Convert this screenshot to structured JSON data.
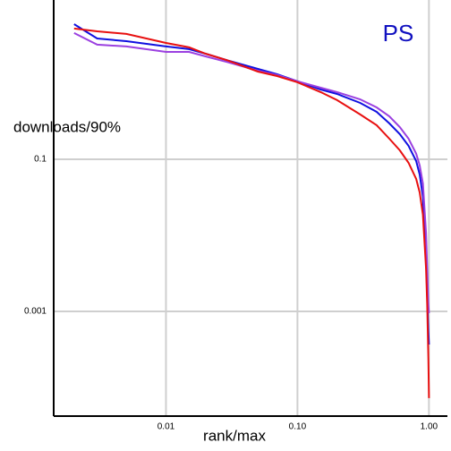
{
  "chart_data": {
    "type": "line",
    "title": "PS",
    "title_color": "#1010c0",
    "x_label": "rank/max",
    "y_label": "downloads/90%",
    "x_log": true,
    "y_log": true,
    "grid": true,
    "x": [
      0.002,
      0.003,
      0.005,
      0.01,
      0.015,
      0.02,
      0.03,
      0.05,
      0.07,
      0.1,
      0.15,
      0.2,
      0.3,
      0.4,
      0.5,
      0.6,
      0.7,
      0.8,
      0.85,
      0.9,
      0.95,
      0.97,
      0.99,
      1.0
    ],
    "series": [
      {
        "color": "#1010e0",
        "values": [
          5.97,
          3.87,
          3.57,
          3.04,
          2.8,
          2.44,
          1.97,
          1.54,
          1.31,
          1.06,
          0.827,
          0.722,
          0.551,
          0.42,
          0.296,
          0.214,
          0.15,
          0.0947,
          0.0631,
          0.0321,
          0.00481,
          0.00163,
          0.000551,
          0.000367
        ]
      },
      {
        "color": "#9b40e0",
        "values": [
          4.56,
          3.21,
          3.04,
          2.58,
          2.58,
          2.25,
          1.87,
          1.46,
          1.28,
          1.06,
          0.873,
          0.763,
          0.614,
          0.481,
          0.367,
          0.265,
          0.186,
          0.118,
          0.0828,
          0.0481,
          0.0108,
          0.00367,
          0.00124,
          0.000946
        ]
      },
      {
        "color": "#e81010",
        "values": [
          5.22,
          4.81,
          4.44,
          3.38,
          2.96,
          2.44,
          1.97,
          1.42,
          1.24,
          1.03,
          0.763,
          0.598,
          0.388,
          0.28,
          0.186,
          0.131,
          0.0897,
          0.0551,
          0.0367,
          0.0187,
          0.00367,
          0.00124,
          0.000244,
          7.23e-05
        ]
      }
    ],
    "xlim": [
      0.0014,
      1.2
    ],
    "ylim": [
      4.2e-05,
      12.4
    ],
    "xticks": [
      {
        "value": 0.01,
        "label": "0.01"
      },
      {
        "value": 0.1,
        "label": "0.10"
      },
      {
        "value": 1,
        "label": "1.00"
      }
    ],
    "yticks": [
      0.1,
      0.001
    ]
  }
}
